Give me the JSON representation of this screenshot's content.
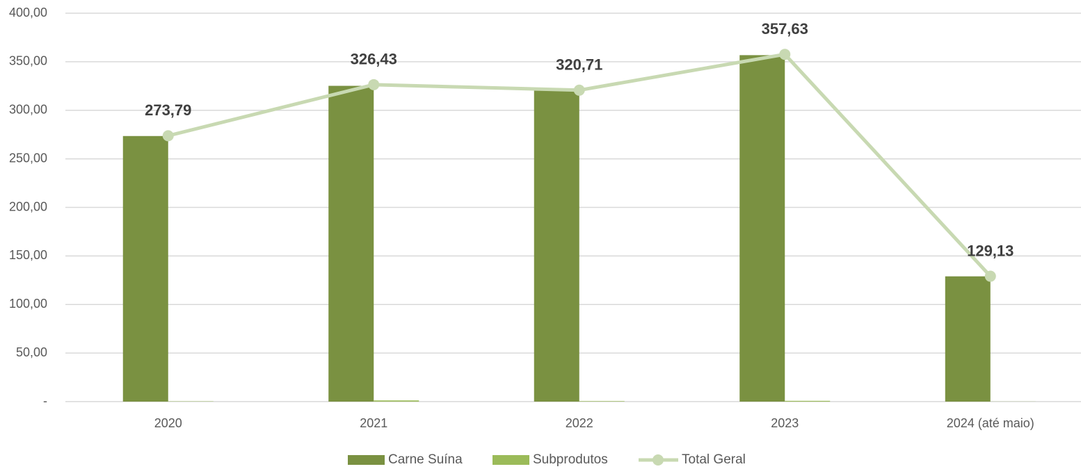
{
  "chart_data": {
    "type": "bar",
    "categories": [
      "2020",
      "2021",
      "2022",
      "2023",
      "2024 (até maio)"
    ],
    "series": [
      {
        "name": "Carne Suína",
        "color": "#7a9141",
        "type": "bar",
        "values": [
          273.5,
          325.2,
          320.2,
          356.8,
          129.0
        ]
      },
      {
        "name": "Subprodutos",
        "color": "#9bbb59",
        "type": "bar",
        "values": [
          0.3,
          1.2,
          0.5,
          0.8,
          0.1
        ]
      },
      {
        "name": "Total Geral",
        "color": "#c8d9b2",
        "type": "line",
        "values": [
          273.79,
          326.43,
          320.71,
          357.63,
          129.13
        ],
        "value_labels": [
          "273,79",
          "326,43",
          "320,71",
          "357,63",
          "129,13"
        ]
      }
    ],
    "ylim": [
      0,
      400
    ],
    "yticks": [
      {
        "value": 0,
        "label": "-"
      },
      {
        "value": 50,
        "label": "50,00"
      },
      {
        "value": 100,
        "label": "100,00"
      },
      {
        "value": 150,
        "label": "150,00"
      },
      {
        "value": 200,
        "label": "200,00"
      },
      {
        "value": 250,
        "label": "250,00"
      },
      {
        "value": 300,
        "label": "300,00"
      },
      {
        "value": 350,
        "label": "350,00"
      },
      {
        "value": 400,
        "label": "400,00"
      }
    ],
    "grid": true,
    "legend": "bottom"
  }
}
